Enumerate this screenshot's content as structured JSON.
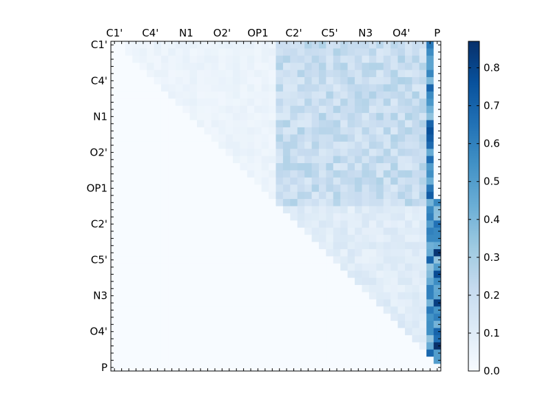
{
  "chart_data": {
    "type": "heatmap",
    "title": "",
    "colormap": "Blues",
    "colorbar": {
      "min": 0.0,
      "max": 0.87,
      "ticks": [
        "0.0",
        "0.1",
        "0.2",
        "0.3",
        "0.4",
        "0.5",
        "0.6",
        "0.7",
        "0.8"
      ]
    },
    "matrix_size": 46,
    "row_labels": [
      "C1'",
      "C4'",
      "N1",
      "O2'",
      "OP1",
      "C2'",
      "C5'",
      "N3",
      "O4'",
      "P"
    ],
    "col_labels": [
      "C1'",
      "C4'",
      "N1",
      "O2'",
      "OP1",
      "C2'",
      "C5'",
      "N3",
      "O4'",
      "P"
    ],
    "label_positions": [
      0,
      5,
      10,
      15,
      20,
      25,
      30,
      35,
      40,
      45
    ],
    "regions": [
      {
        "rows": [
          0,
          22
        ],
        "cols": [
          2,
          22
        ],
        "value": 0.05
      },
      {
        "rows": [
          0,
          22
        ],
        "cols": [
          23,
          43
        ],
        "value": 0.2
      },
      {
        "rows": [
          0,
          22
        ],
        "cols": [
          44,
          44
        ],
        "value": 0.55
      },
      {
        "rows": [
          22,
          43
        ],
        "cols": [
          24,
          43
        ],
        "value": 0.1
      },
      {
        "rows": [
          22,
          45
        ],
        "cols": [
          44,
          45
        ],
        "value": 0.5
      }
    ],
    "peaks": [
      {
        "row": 29,
        "col": 45,
        "value": 0.85
      },
      {
        "row": 36,
        "col": 45,
        "value": 0.82
      },
      {
        "row": 42,
        "col": 45,
        "value": 0.87
      },
      {
        "row": 32,
        "col": 45,
        "value": 0.78
      },
      {
        "row": 40,
        "col": 44,
        "value": 0.55
      },
      {
        "row": 42,
        "col": 44,
        "value": 0.45
      }
    ]
  }
}
